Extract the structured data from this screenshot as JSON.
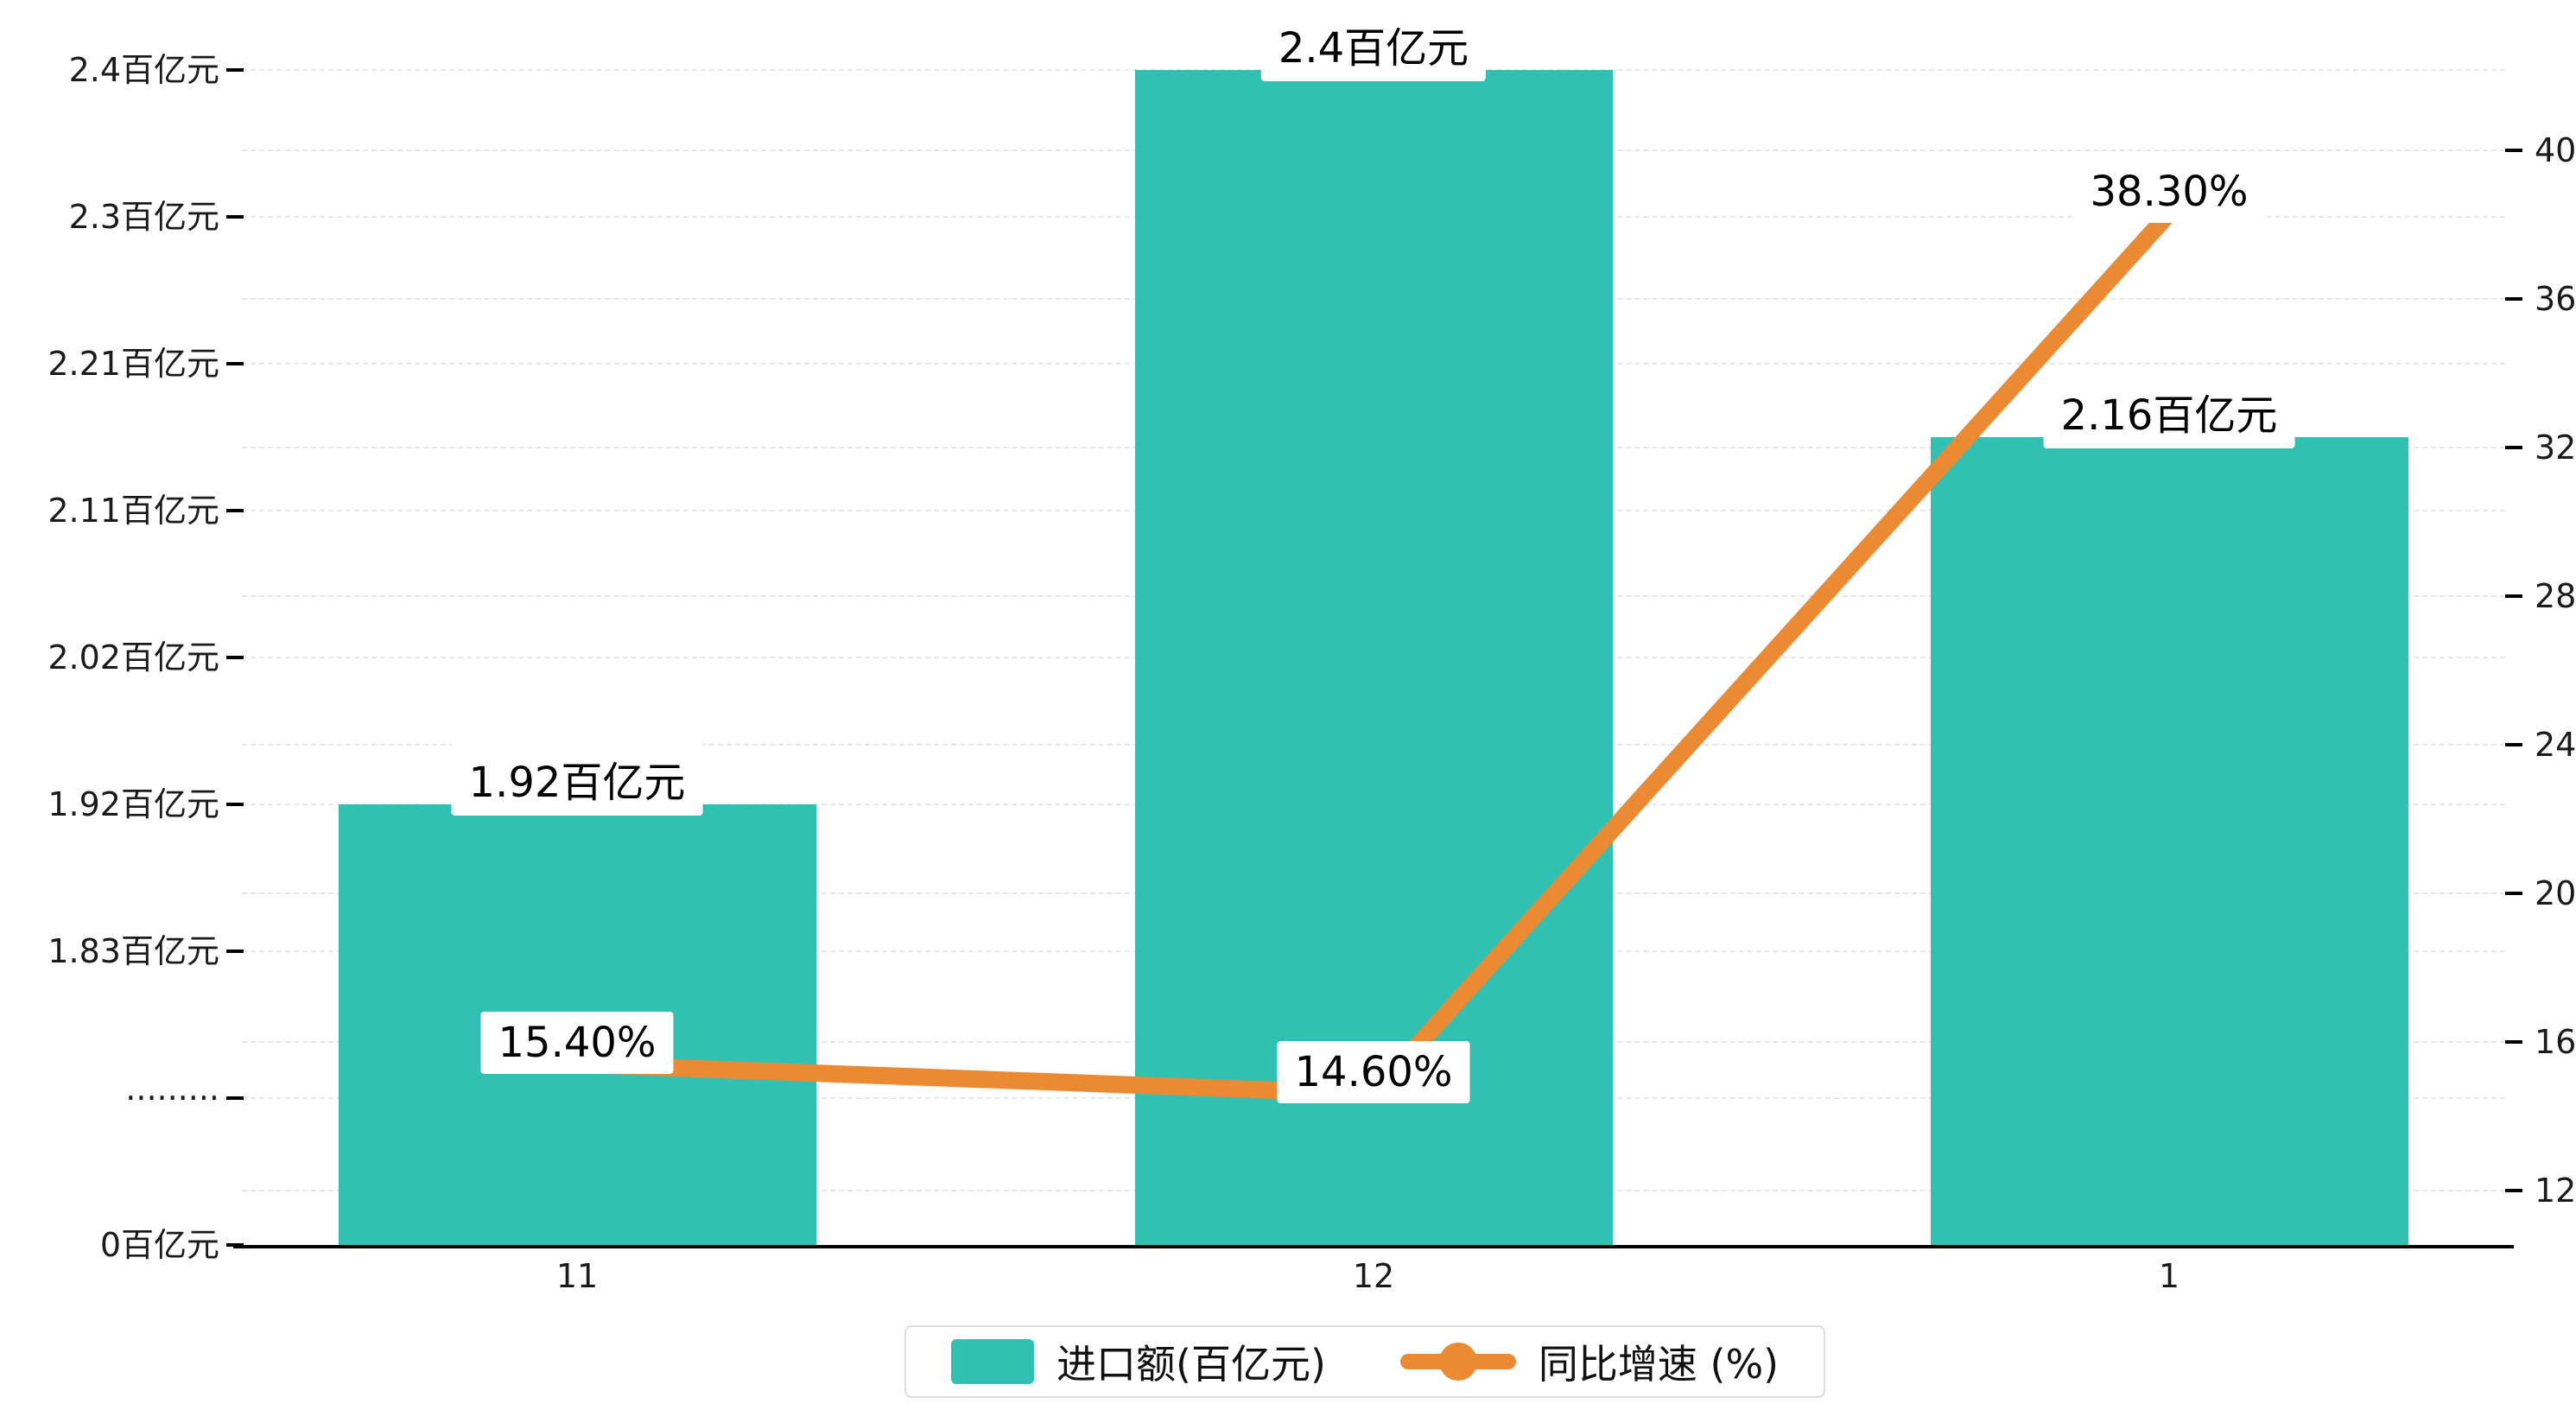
{
  "chart_data": {
    "type": "combo",
    "categories": [
      "11",
      "12",
      "1"
    ],
    "series": [
      {
        "name": "进口额(百亿元)",
        "type": "bar",
        "values": [
          1.92,
          2.4,
          2.16
        ],
        "labels": [
          "1.92百亿元",
          "2.4百亿元",
          "2.16百亿元"
        ],
        "color": "#31c1b2",
        "tick_pos": [
          3,
          8,
          5.5
        ]
      },
      {
        "name": "同比增速 (%)",
        "type": "line",
        "values": [
          15.4,
          14.6,
          38.3
        ],
        "labels": [
          "15.40%",
          "14.60%",
          "38.30%"
        ],
        "color": "#ec8a33"
      }
    ],
    "left_axis": {
      "ticks": [
        "0百亿元",
        "·········",
        "1.83百亿元",
        "1.92百亿元",
        "2.02百亿元",
        "2.11百亿元",
        "2.21百亿元",
        "2.3百亿元",
        "2.4百亿元"
      ]
    },
    "right_axis": {
      "min": 12,
      "max": 40,
      "step": 4,
      "ticks": [
        "12",
        "16",
        "20",
        "24",
        "28",
        "32",
        "36",
        "40"
      ]
    },
    "legend": [
      "进口额(百亿元)",
      "同比增速 (%)"
    ],
    "grid": true,
    "title": ""
  }
}
